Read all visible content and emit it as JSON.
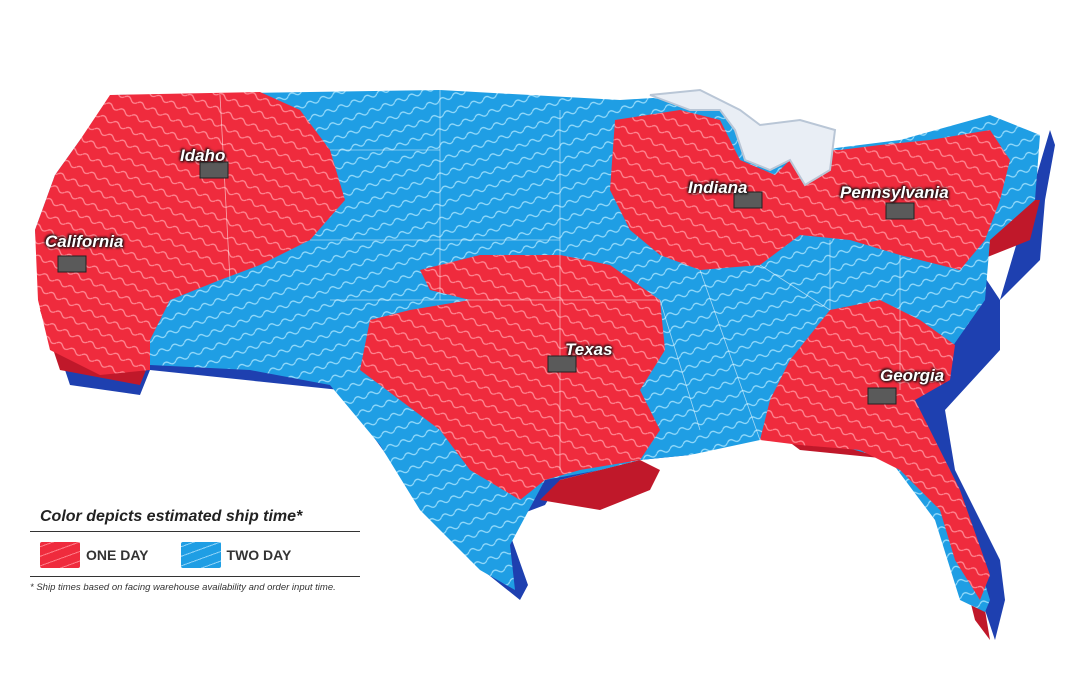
{
  "warehouses": [
    {
      "id": "idaho",
      "label": "Idaho"
    },
    {
      "id": "california",
      "label": "California"
    },
    {
      "id": "indiana",
      "label": "Indiana"
    },
    {
      "id": "pennsylvania",
      "label": "Pennsylvania"
    },
    {
      "id": "texas",
      "label": "Texas"
    },
    {
      "id": "georgia",
      "label": "Georgia"
    }
  ],
  "legend": {
    "title": "Color depicts estimated ship time*",
    "items": [
      {
        "label": "ONE DAY",
        "color": "#ef2b3d"
      },
      {
        "label": "TWO DAY",
        "color": "#1f9ee4"
      }
    ],
    "footnote": "* Ship times based on facing warehouse availability and order input time."
  },
  "colors": {
    "one_day": "#ef2b3d",
    "two_day": "#1f9ee4",
    "extrusion": "#1e40b0"
  }
}
